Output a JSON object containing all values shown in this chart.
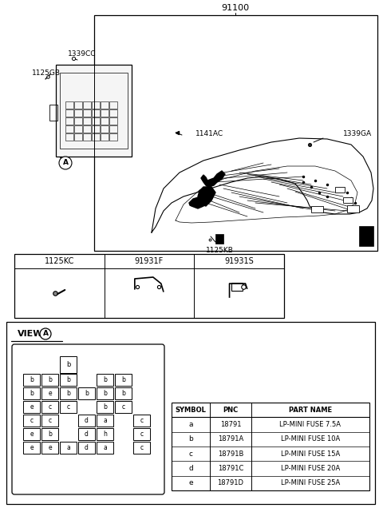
{
  "bg_color": "#ffffff",
  "title": "91100",
  "label_1339GA": "1339GA",
  "label_1339CC": "1339CC",
  "label_1125GB": "1125GB",
  "label_1141AC": "1141AC",
  "label_1125KB": "1125KB",
  "parts_headers": [
    "1125KC",
    "91931F",
    "91931S"
  ],
  "view_a_title": "VIEW",
  "fuse_table_headers": [
    "SYMBOL",
    "PNC",
    "PART NAME"
  ],
  "fuse_symbols": [
    "a",
    "b",
    "c",
    "d",
    "e"
  ],
  "fuse_pnc": [
    "18791",
    "18791A",
    "18791B",
    "18791C",
    "18791D"
  ],
  "fuse_parts": [
    "LP-MINI FUSE 7.5A",
    "LP-MINI FUSE 10A",
    "LP-MINI FUSE 15A",
    "LP-MINI FUSE 20A",
    "LP-MINI FUSE 25A"
  ],
  "fuse_grid_rows": [
    [
      null,
      null,
      "b",
      null,
      null,
      null,
      null
    ],
    [
      "b",
      "b",
      "b",
      null,
      "b",
      "b",
      null
    ],
    [
      "b",
      "e",
      "b",
      "b",
      "b",
      "b",
      null
    ],
    [
      "e",
      "c",
      "c",
      null,
      "b",
      "c",
      null
    ],
    [
      "c",
      "c",
      null,
      "d",
      "a",
      null,
      "c"
    ],
    [
      "e",
      "b",
      null,
      "d",
      "h",
      null,
      "c"
    ],
    [
      "e",
      "e",
      "a",
      "d",
      "a",
      null,
      "c"
    ]
  ]
}
